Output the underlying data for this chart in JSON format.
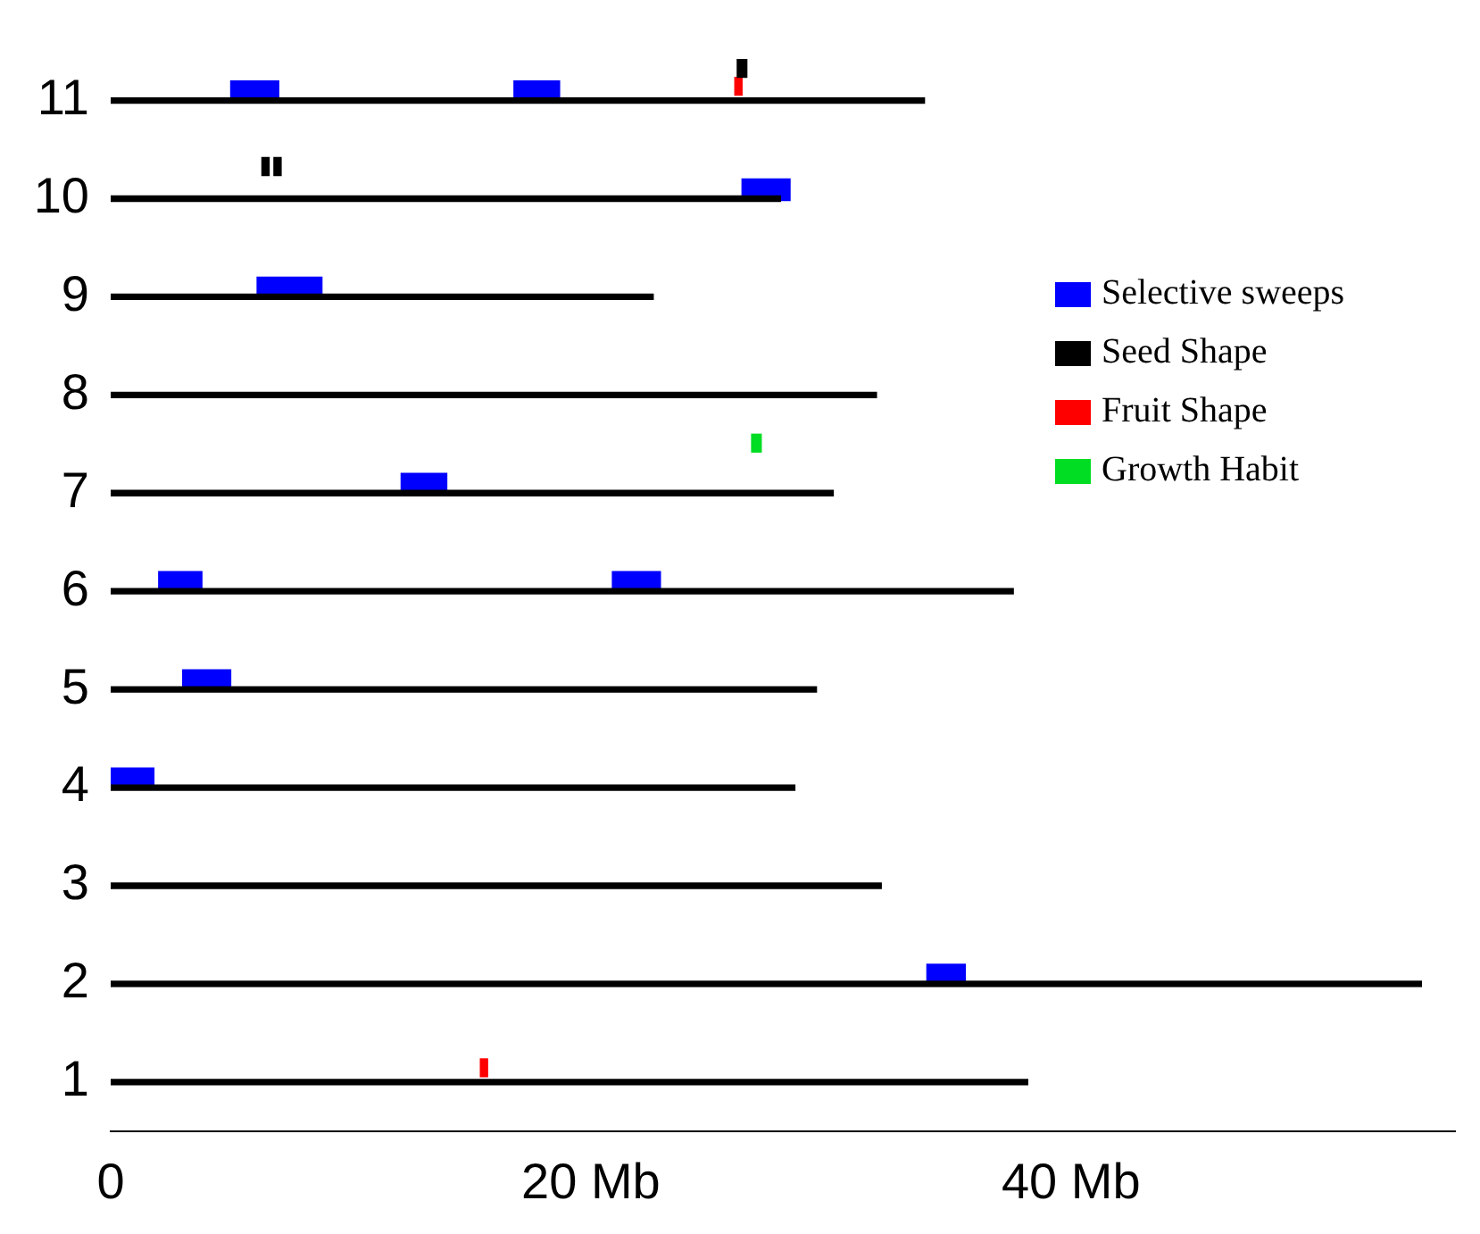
{
  "chart_data": {
    "type": "bar",
    "orientation": "horizontal",
    "categories": [
      "11",
      "10",
      "9",
      "8",
      "7",
      "6",
      "5",
      "4",
      "3",
      "2",
      "1"
    ],
    "xlim": [
      0,
      56
    ],
    "xticks": [
      0,
      {
        "value": 20,
        "label": "20 Mb"
      },
      {
        "value": 40,
        "label": "40 Mb"
      }
    ],
    "grid": false,
    "legend": "right",
    "series": [
      {
        "name": "Selective sweeps",
        "color": "#0000ff",
        "base": [
          5.0,
          26.3,
          6.1,
          null,
          12.1,
          2.0,
          3.0,
          0,
          null,
          34.0,
          null
        ],
        "values": [
          2.0,
          2.0,
          2.7,
          null,
          1.9,
          1.8,
          2.0,
          1.8,
          null,
          1.6,
          null
        ]
      },
      {
        "color": "#0000ff",
        "base": [
          16.8,
          null,
          null,
          null,
          null,
          20.9,
          null,
          null,
          null,
          null,
          null
        ],
        "values": [
          1.9,
          null,
          null,
          null,
          null,
          2.0,
          null,
          null,
          null,
          null,
          null
        ]
      },
      {
        "name": "Seed Shape",
        "color": "#000000",
        "base": [
          26.1,
          6.3,
          null,
          null,
          null,
          null,
          null,
          null,
          null,
          null,
          null
        ],
        "values": [
          0.4,
          0.3,
          null,
          null,
          null,
          null,
          null,
          null,
          null,
          null,
          null
        ]
      },
      {
        "color": "#000000",
        "base": [
          null,
          6.8,
          null,
          null,
          null,
          null,
          null,
          null,
          null,
          null,
          null
        ],
        "values": [
          null,
          0.3,
          null,
          null,
          null,
          null,
          null,
          null,
          null,
          null,
          null
        ]
      },
      {
        "name": "Fruit Shape",
        "color": "#ff0000",
        "base": [
          26.0,
          null,
          null,
          null,
          null,
          null,
          null,
          null,
          null,
          null,
          15.4
        ],
        "values": [
          0.3,
          null,
          null,
          null,
          null,
          null,
          null,
          null,
          null,
          null,
          0.3
        ]
      },
      {
        "name": "Growth Habit",
        "color": "#00dd22",
        "base": [
          null,
          null,
          null,
          null,
          26.7,
          null,
          null,
          null,
          null,
          null,
          null
        ],
        "values": [
          null,
          null,
          null,
          null,
          0.4,
          null,
          null,
          null,
          null,
          null,
          null
        ]
      },
      {
        "color": "#000000",
        "values": [
          33.9,
          27.9,
          22.6,
          31.9,
          30.1,
          37.6,
          29.4,
          28.5,
          32.1,
          54.6,
          38.2
        ]
      }
    ]
  }
}
